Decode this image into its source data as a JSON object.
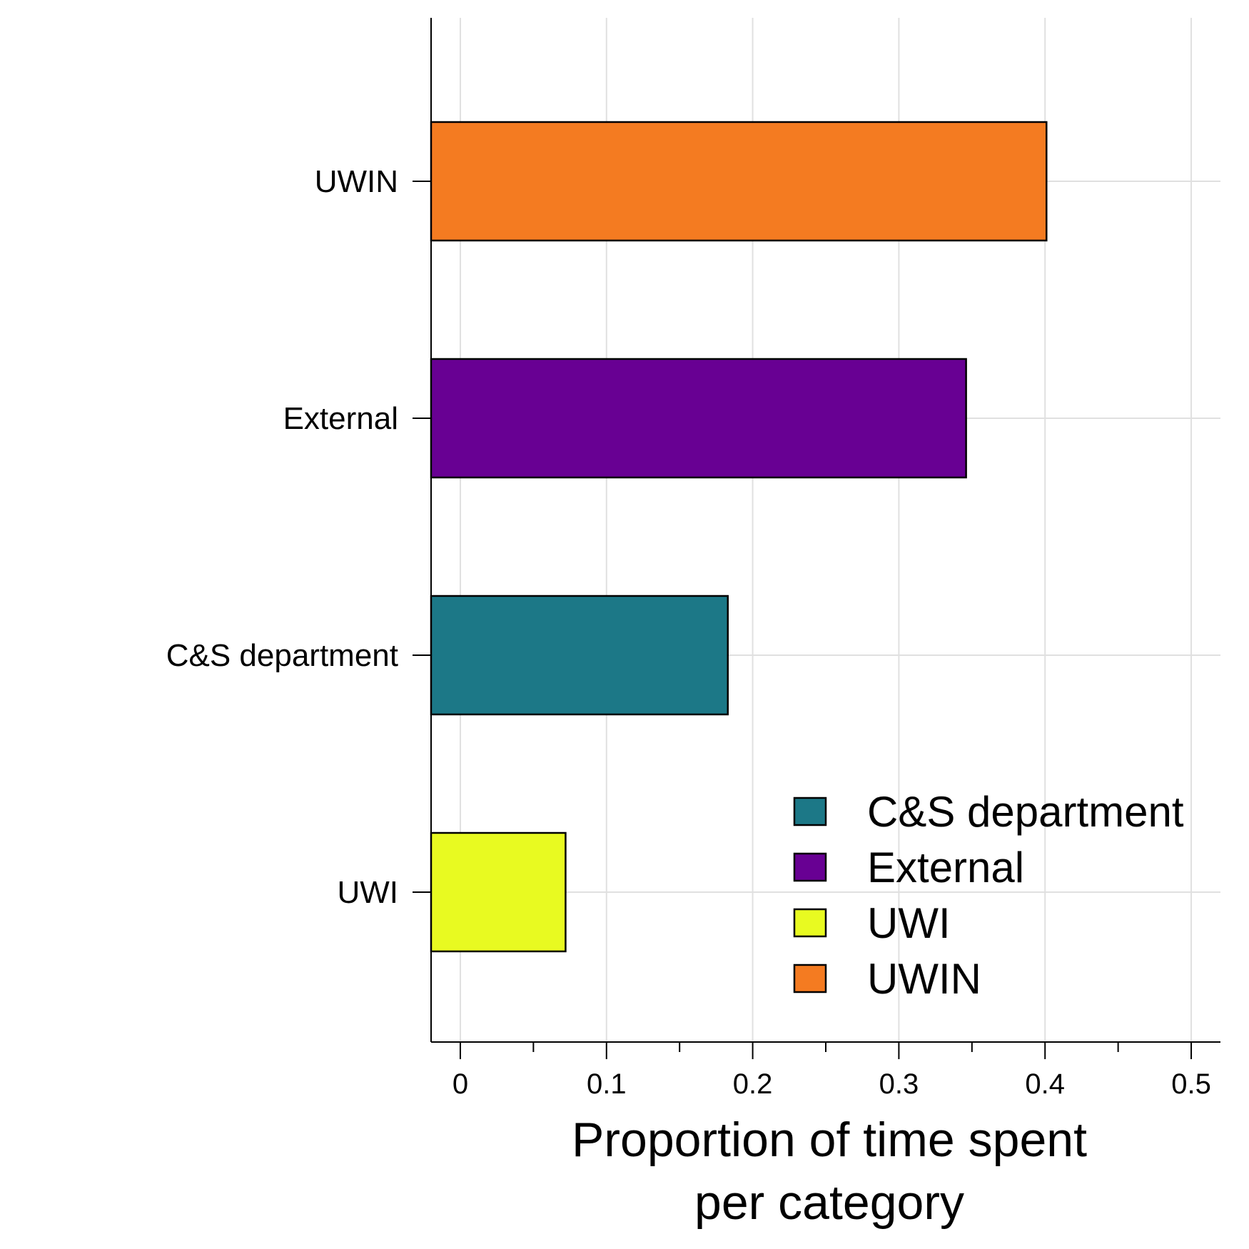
{
  "chart_data": {
    "type": "bar",
    "orientation": "horizontal",
    "categories": [
      "UWI",
      "C&S department",
      "External",
      "UWIN"
    ],
    "values": [
      0.072,
      0.183,
      0.346,
      0.401
    ],
    "colors": [
      "#e8fa21",
      "#1c7887",
      "#680093",
      "#f47b21"
    ],
    "title": "",
    "xlabel_lines": [
      "Proportion of time spent",
      "per category"
    ],
    "ylabel": "",
    "xlim": [
      -0.02,
      0.52
    ],
    "xticks": [
      0,
      0.1,
      0.2,
      0.3,
      0.4,
      0.5
    ],
    "xtick_labels": [
      "0",
      "0.1",
      "0.2",
      "0.3",
      "0.4",
      "0.5"
    ],
    "x_minor_ticks": [
      0.05,
      0.15,
      0.25,
      0.35,
      0.45
    ],
    "grid": true,
    "legend": {
      "placement": "bottom-right",
      "entries": [
        {
          "label": "C&S department",
          "color": "#1c7887"
        },
        {
          "label": "External",
          "color": "#680093"
        },
        {
          "label": "UWI",
          "color": "#e8fa21"
        },
        {
          "label": "UWIN",
          "color": "#f47b21"
        }
      ]
    }
  }
}
